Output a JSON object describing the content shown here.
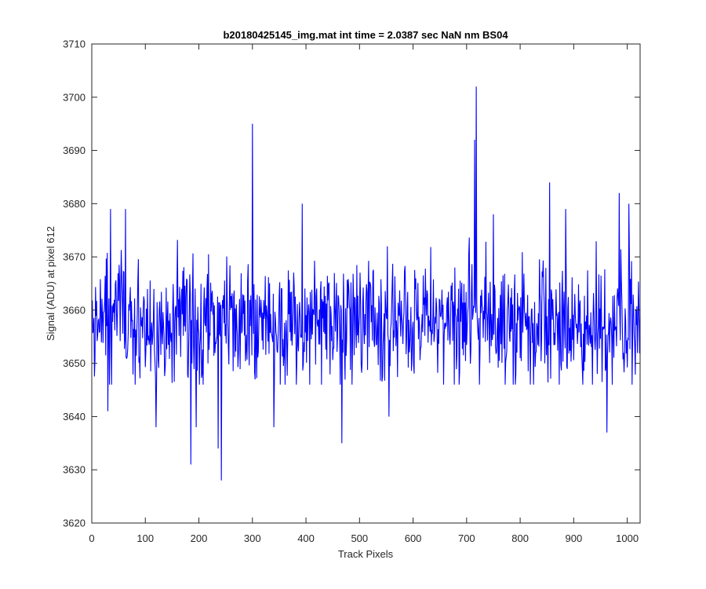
{
  "chart_data": {
    "type": "line",
    "title": "b20180425145_img.mat int time = 2.0387 sec  NaN nm BS04",
    "xlabel": "Track Pixels",
    "ylabel": "Signal (ADU) at pixel 612",
    "xlim": [
      0,
      1024
    ],
    "ylim": [
      3620,
      3710
    ],
    "x_ticks": [
      0,
      100,
      200,
      300,
      400,
      500,
      600,
      700,
      800,
      900,
      1000
    ],
    "y_ticks": [
      3620,
      3630,
      3640,
      3650,
      3660,
      3670,
      3680,
      3690,
      3700,
      3710
    ],
    "grid": false,
    "series": [
      {
        "color": "#0000ff",
        "x_start": 1,
        "x_step": 1,
        "points_count": 1024,
        "mean": 3658,
        "noise_sd": 6,
        "notable_points": [
          {
            "x": 30,
            "y": 3641
          },
          {
            "x": 35,
            "y": 3679
          },
          {
            "x": 63,
            "y": 3679
          },
          {
            "x": 120,
            "y": 3638
          },
          {
            "x": 185,
            "y": 3631
          },
          {
            "x": 195,
            "y": 3638
          },
          {
            "x": 236,
            "y": 3634
          },
          {
            "x": 242,
            "y": 3628
          },
          {
            "x": 300,
            "y": 3695
          },
          {
            "x": 340,
            "y": 3638
          },
          {
            "x": 393,
            "y": 3680
          },
          {
            "x": 467,
            "y": 3635
          },
          {
            "x": 555,
            "y": 3640
          },
          {
            "x": 715,
            "y": 3692
          },
          {
            "x": 718,
            "y": 3702
          },
          {
            "x": 750,
            "y": 3678
          },
          {
            "x": 855,
            "y": 3684
          },
          {
            "x": 885,
            "y": 3679
          },
          {
            "x": 962,
            "y": 3637
          },
          {
            "x": 985,
            "y": 3682
          },
          {
            "x": 1003,
            "y": 3680
          }
        ]
      }
    ]
  }
}
